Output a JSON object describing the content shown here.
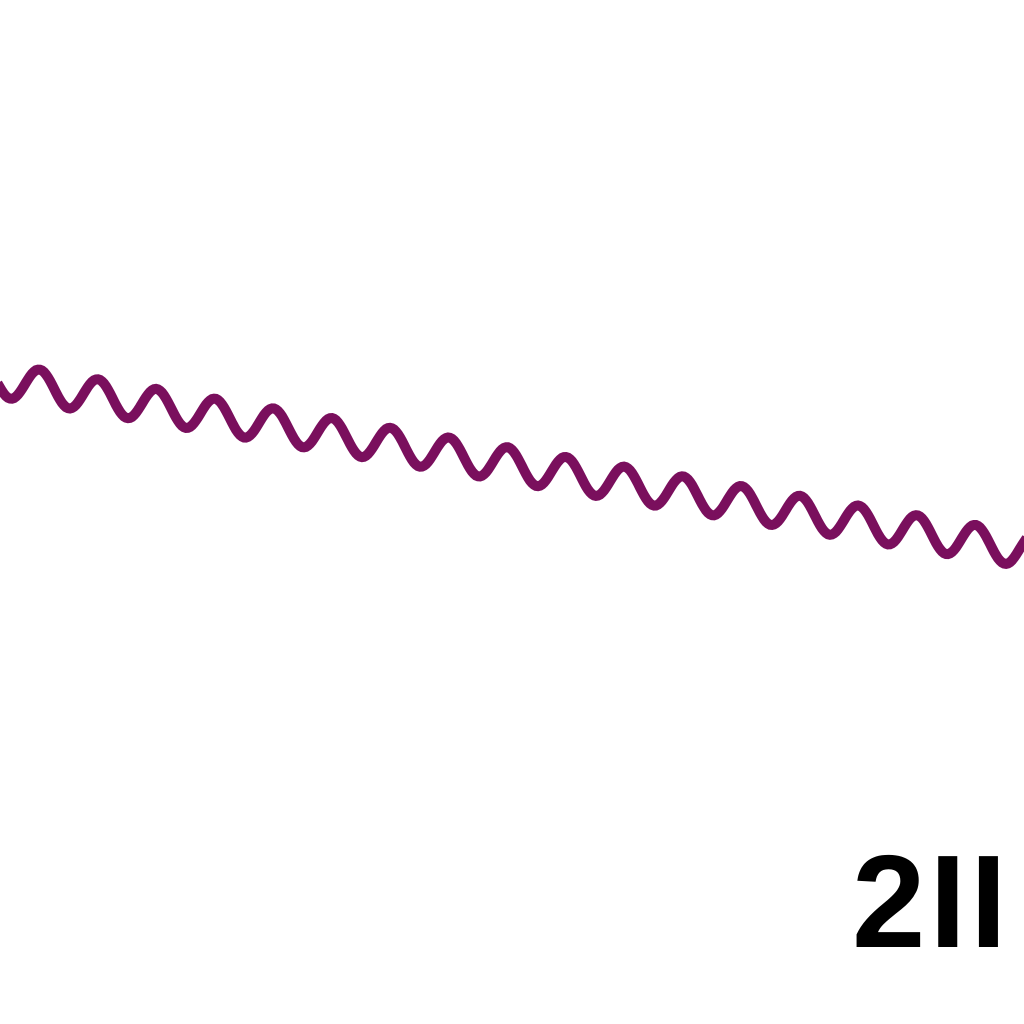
{
  "diagram": {
    "wave_color": "#7a0f5d",
    "text_color": "#000000",
    "background": "#ffffff",
    "label": "2II"
  }
}
